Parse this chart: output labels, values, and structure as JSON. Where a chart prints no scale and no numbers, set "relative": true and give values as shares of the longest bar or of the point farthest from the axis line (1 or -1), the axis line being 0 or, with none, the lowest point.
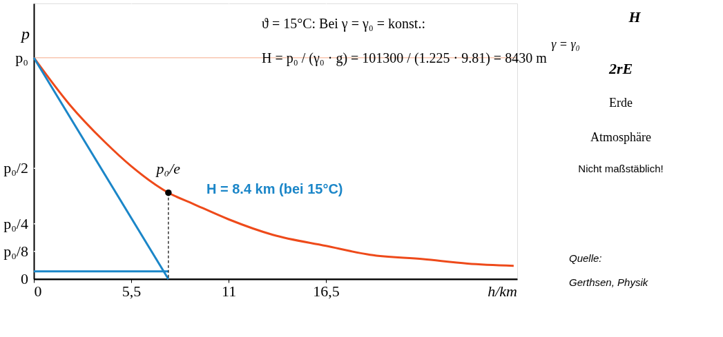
{
  "chart_data": {
    "type": "line",
    "xlabel": "h/km",
    "ylabel": "p",
    "relative": true,
    "xlim": [
      0,
      27.3
    ],
    "xticks": [
      0,
      {
        "value": 5.5,
        "label": "5,5"
      },
      11,
      {
        "value": 16.5,
        "label": "16,5"
      }
    ],
    "grid": "x",
    "ref_lines": [
      {
        "axis": "y",
        "value": 0,
        "label": "0",
        "color": "#000000"
      },
      {
        "axis": "y",
        "value": 0.125,
        "label": "p₀/8",
        "color": "#ffffff"
      },
      {
        "axis": "y",
        "value": 0.25,
        "label": "p₀/4",
        "color": "#ffffff"
      },
      {
        "axis": "y",
        "value": 0.5,
        "label": "p₀/2",
        "color": "#ffffff"
      },
      {
        "axis": "y",
        "value": 1,
        "label": "p₀",
        "color": "#f9c6b0"
      }
    ],
    "series": [
      {
        "color": "#ee4a1a",
        "x": [
          0,
          2,
          4,
          5.5,
          7.6,
          9,
          11,
          13.5,
          16.5,
          19,
          22,
          24.5,
          27.1
        ],
        "values": [
          1,
          0.79,
          0.62,
          0.51,
          0.39,
          0.34,
          0.27,
          0.2,
          0.15,
          0.11,
          0.09,
          0.07,
          0.06
        ]
      },
      {
        "color": "#1b86c8",
        "x": [
          0,
          7.6
        ],
        "values": [
          1,
          0
        ]
      },
      {
        "color": "#1b86c8",
        "x": [
          0,
          7.6
        ],
        "values": [
          0.035,
          0.035
        ]
      },
      {
        "color": "#000000",
        "type": "line",
        "line_style": "dashed",
        "x": [
          7.6,
          7.6
        ],
        "values": [
          0.39,
          0
        ]
      },
      {
        "color": "#000000",
        "type": "scatter",
        "marker": "circle",
        "x": [
          7.6
        ],
        "values": [
          0.39
        ]
      }
    ],
    "annotations": [
      "ϑ = 15°C:  Bei γ = γ₀ = konst.:",
      "H = p₀ / (γ₀ · g) = 101300 / (1.225 · 9.81) = 8430 m",
      {
        "text": "p₀/e",
        "x": 7.6,
        "y": 0.39
      },
      "H = 8.4 km (bei 15°C)",
      "H",
      "γ = γ₀",
      "2rE",
      "Erde",
      "Atmosphäre",
      "Nicht maßstäblich!",
      "Quelle:",
      "Gerthsen, Physik"
    ]
  }
}
